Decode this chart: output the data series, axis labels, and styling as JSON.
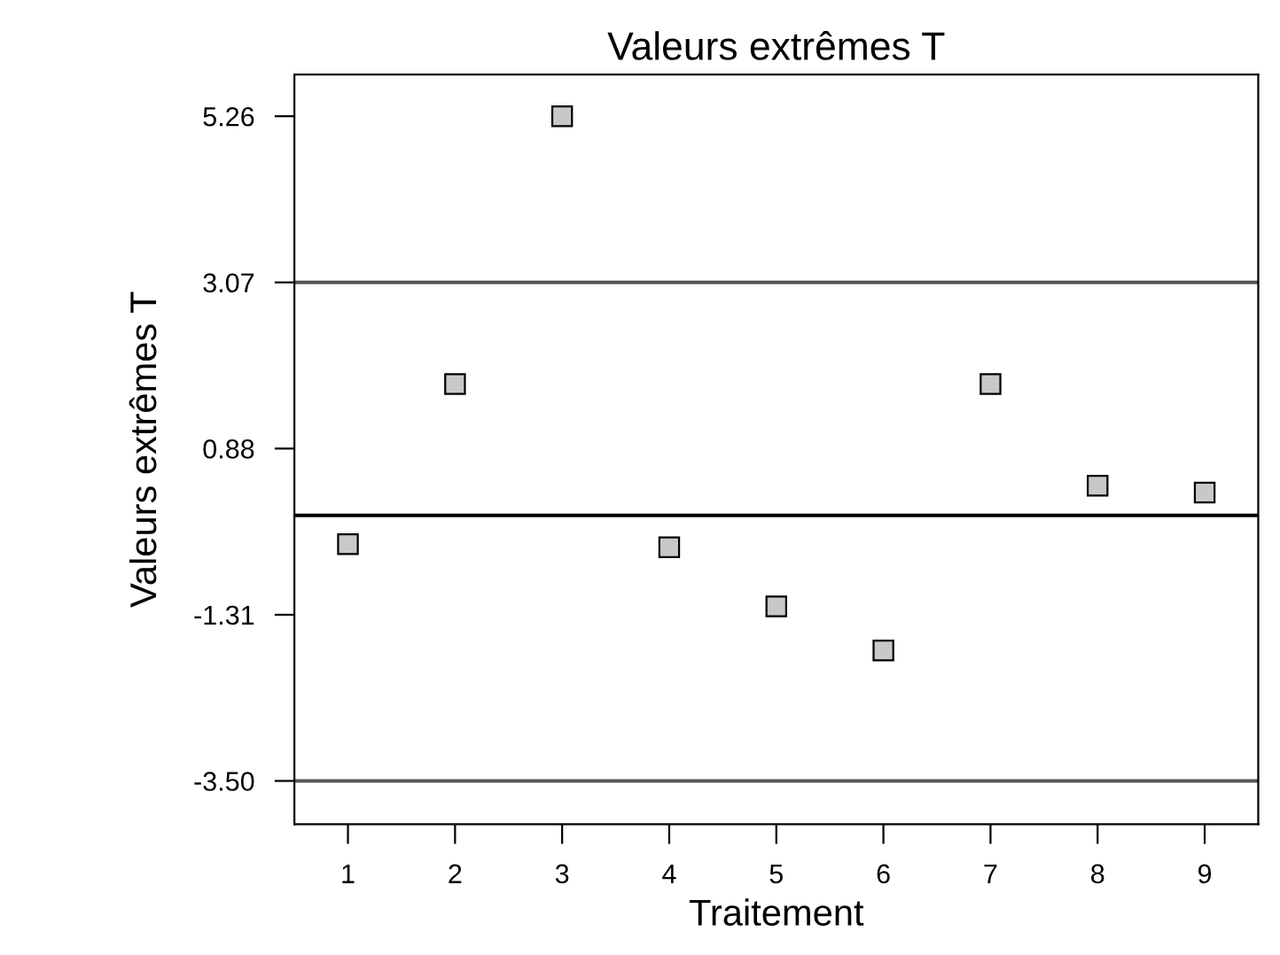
{
  "chart_data": {
    "type": "scatter",
    "title": "Valeurs extrêmes T",
    "xlabel": "Traitement",
    "ylabel": "Valeurs extrêmes T",
    "x": [
      1,
      2,
      3,
      4,
      5,
      6,
      7,
      8,
      9
    ],
    "series": [
      {
        "color": "#c8c8c8",
        "values": [
          -0.38,
          1.73,
          5.26,
          -0.42,
          -1.2,
          -1.78,
          1.73,
          0.39,
          0.3
        ]
      }
    ],
    "marker": "square",
    "xlim": [
      0.5,
      9.5
    ],
    "xticks": [
      1,
      2,
      3,
      4,
      5,
      6,
      7,
      8,
      9
    ],
    "ylim": [
      -4.07,
      5.81
    ],
    "yticks": [
      5.26,
      3.07,
      0.88,
      -1.31,
      {
        "value": -3.5,
        "label": "-3.50"
      }
    ],
    "ref_lines": [
      {
        "axis": "y",
        "value": 3.07,
        "color": "#555555"
      },
      {
        "axis": "y",
        "value": 0,
        "color": "#000000"
      },
      {
        "axis": "y",
        "value": -3.5,
        "color": "#555555"
      }
    ],
    "grid": false,
    "legend": false
  }
}
